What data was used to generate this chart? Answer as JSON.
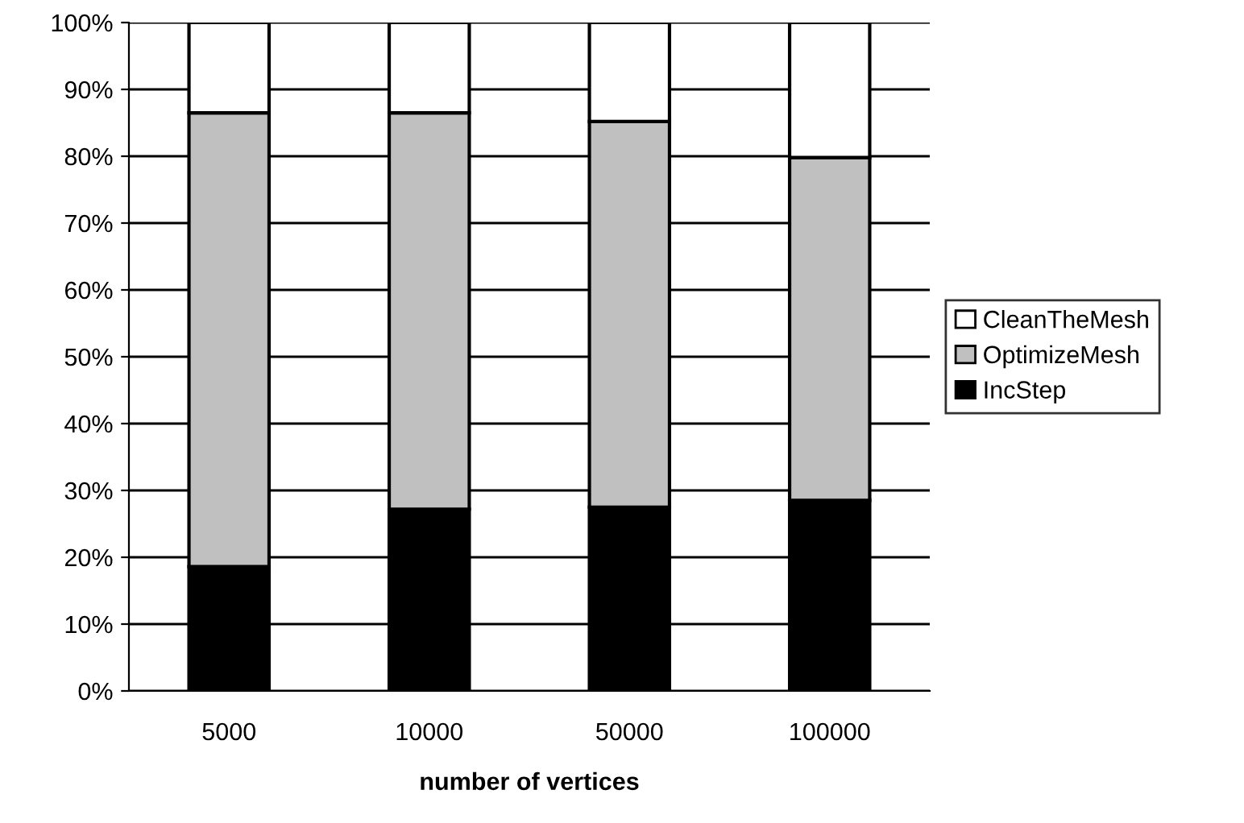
{
  "chart_data": {
    "type": "bar",
    "stacked": true,
    "xlabel": "number of vertices",
    "categories": [
      "5000",
      "10000",
      "50000",
      "100000"
    ],
    "series": [
      {
        "name": "IncStep",
        "color": "#000000",
        "values": [
          18.6,
          27.2,
          27.5,
          28.5
        ]
      },
      {
        "name": "OptimizeMesh",
        "color": "#c0c0c0",
        "values": [
          67.9,
          59.3,
          57.7,
          51.3
        ]
      },
      {
        "name": "CleanTheMesh",
        "color": "#ffffff",
        "values": [
          13.5,
          13.5,
          14.8,
          20.2
        ]
      }
    ],
    "ylim": [
      0,
      100
    ],
    "yticks": [
      {
        "value": 0,
        "label": "0%"
      },
      {
        "value": 10,
        "label": "10%"
      },
      {
        "value": 20,
        "label": "20%"
      },
      {
        "value": 30,
        "label": "30%"
      },
      {
        "value": 40,
        "label": "40%"
      },
      {
        "value": 50,
        "label": "50%"
      },
      {
        "value": 60,
        "label": "60%"
      },
      {
        "value": 70,
        "label": "70%"
      },
      {
        "value": 80,
        "label": "80%"
      },
      {
        "value": 90,
        "label": "90%"
      },
      {
        "value": 100,
        "label": "100%"
      }
    ],
    "grid": "y",
    "legend": "right"
  }
}
